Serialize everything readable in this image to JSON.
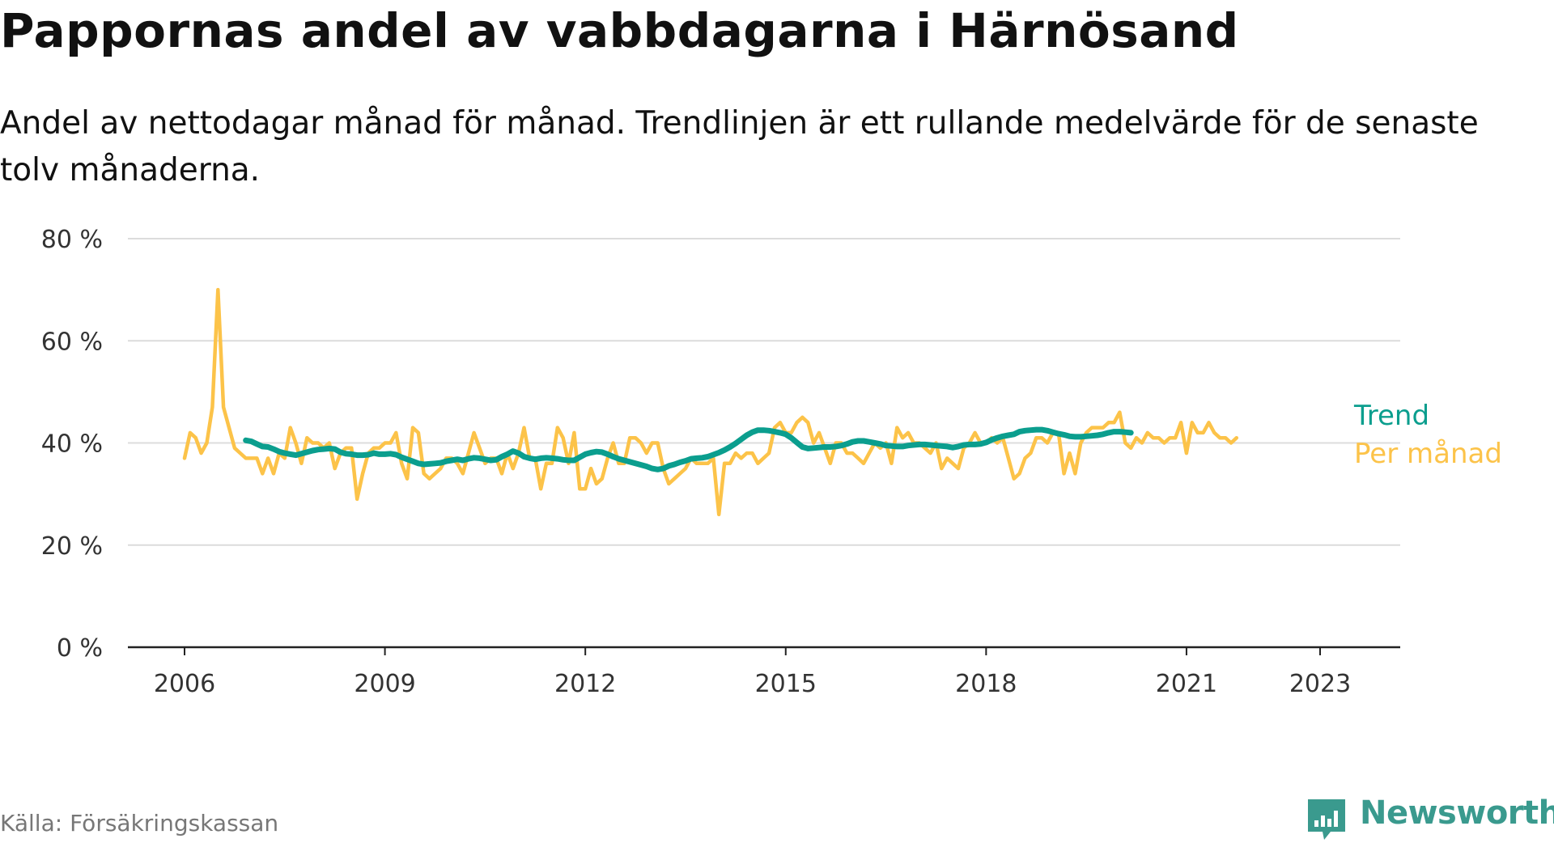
{
  "title": "Pappornas andel av vabbdagarna i Härnösand",
  "subtitle": "Andel av nettodagar månad för månad. Trendlinjen är ett rullande medelvärde för de senaste tolv månaderna.",
  "source": "Källa: Försäkringskassan",
  "brand": {
    "name": "Newsworthy",
    "icon": "bar-chart-speech-bubble-icon",
    "color": "#3a9a8e"
  },
  "chart_data": {
    "type": "line",
    "title": "Pappornas andel av vabbdagarna i Härnösand",
    "subtitle": "Andel av nettodagar månad för månad. Trendlinjen är ett rullande medelvärde för de senaste tolv månaderna.",
    "xlabel": "",
    "ylabel": "",
    "ylim": [
      0,
      80
    ],
    "xlim": [
      "2006-01",
      "2025-01"
    ],
    "yticks": [
      0,
      20,
      40,
      60,
      80
    ],
    "ytick_labels": [
      "0 %",
      "20 %",
      "40 %",
      "60 %",
      "80 %"
    ],
    "xticks": [
      "2006-01",
      "2009-01",
      "2012-01",
      "2015-01",
      "2018-01",
      "2021-01",
      "2023-01"
    ],
    "xtick_labels": [
      "2006",
      "2009",
      "2012",
      "2015",
      "2018",
      "2021",
      "2023"
    ],
    "grid": true,
    "legend": "inline labels at right end of lines",
    "series": [
      {
        "name": "Per månad",
        "color": "#fcc349",
        "start": "2006-01",
        "values": [
          37,
          42,
          41,
          38,
          40,
          47,
          70,
          47,
          43,
          39,
          38,
          37,
          37,
          37,
          34,
          37,
          34,
          38,
          37,
          43,
          40,
          36,
          41,
          40,
          40,
          39,
          40,
          35,
          38,
          39,
          39,
          29,
          34,
          38,
          39,
          39,
          40,
          40,
          42,
          36,
          33,
          43,
          42,
          34,
          33,
          34,
          35,
          37,
          37,
          36,
          34,
          38,
          42,
          39,
          36,
          37,
          37,
          34,
          38,
          35,
          38,
          43,
          37,
          37,
          31,
          36,
          36,
          43,
          41,
          36,
          42,
          31,
          31,
          35,
          32,
          33,
          37,
          40,
          36,
          36,
          41,
          41,
          40,
          38,
          40,
          40,
          35,
          32,
          33,
          34,
          35,
          37,
          36,
          36,
          36,
          37,
          26,
          36,
          36,
          38,
          37,
          38,
          38,
          36,
          37,
          38,
          43,
          44,
          42,
          42,
          44,
          45,
          44,
          40,
          42,
          39,
          36,
          40,
          40,
          38,
          38,
          37,
          36,
          38,
          40,
          39,
          40,
          36,
          43,
          41,
          42,
          40,
          40,
          39,
          38,
          40,
          35,
          37,
          36,
          35,
          39,
          40,
          42,
          40,
          40,
          41,
          40,
          41,
          37,
          33,
          34,
          37,
          38,
          41,
          41,
          40,
          42,
          42,
          34,
          38,
          34,
          40,
          42,
          43,
          43,
          43,
          44,
          44,
          46,
          40,
          39,
          41,
          40,
          42,
          41,
          41,
          40,
          41,
          41,
          44,
          38,
          44,
          42,
          42,
          44,
          42,
          41,
          41,
          40,
          41
        ]
      },
      {
        "name": "Trend",
        "color": "#0b9e8e",
        "start": "2006-12",
        "values": [
          40.5,
          40.3,
          39.8,
          39.3,
          39.2,
          38.8,
          38.3,
          38.0,
          37.8,
          37.6,
          37.9,
          38.2,
          38.5,
          38.7,
          38.8,
          38.9,
          38.8,
          38.2,
          37.9,
          37.8,
          37.6,
          37.6,
          37.7,
          38.0,
          37.8,
          37.8,
          37.9,
          37.7,
          37.2,
          36.8,
          36.4,
          36.0,
          35.8,
          35.9,
          36.0,
          36.1,
          36.4,
          36.6,
          36.8,
          36.6,
          36.9,
          37.1,
          37.0,
          36.8,
          36.6,
          36.7,
          37.3,
          37.8,
          38.4,
          38.0,
          37.3,
          37.0,
          36.8,
          37.0,
          37.1,
          37.0,
          36.9,
          36.7,
          36.6,
          36.6,
          37.2,
          37.8,
          38.1,
          38.3,
          38.2,
          37.8,
          37.3,
          36.9,
          36.6,
          36.3,
          36.0,
          35.7,
          35.4,
          35.0,
          34.8,
          35.0,
          35.5,
          35.8,
          36.2,
          36.5,
          36.9,
          37.0,
          37.1,
          37.3,
          37.7,
          38.1,
          38.6,
          39.2,
          39.9,
          40.7,
          41.5,
          42.1,
          42.5,
          42.5,
          42.4,
          42.2,
          42.0,
          41.7,
          41.0,
          40.1,
          39.2,
          38.9,
          39.0,
          39.1,
          39.2,
          39.2,
          39.3,
          39.5,
          39.8,
          40.2,
          40.4,
          40.4,
          40.2,
          40.0,
          39.8,
          39.5,
          39.4,
          39.3,
          39.3,
          39.5,
          39.6,
          39.7,
          39.7,
          39.6,
          39.5,
          39.4,
          39.3,
          39.1,
          39.3,
          39.6,
          39.7,
          39.7,
          39.8,
          40.1,
          40.6,
          41.0,
          41.3,
          41.5,
          41.7,
          42.2,
          42.4,
          42.5,
          42.6,
          42.6,
          42.4,
          42.1,
          41.8,
          41.6,
          41.3,
          41.2,
          41.2,
          41.3,
          41.4,
          41.5,
          41.7,
          42.0,
          42.2,
          42.2,
          42.1,
          42.0
        ]
      }
    ]
  }
}
